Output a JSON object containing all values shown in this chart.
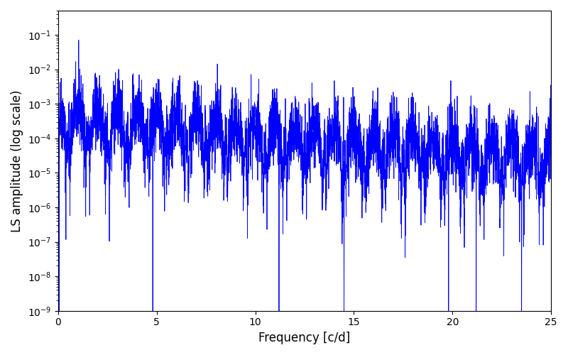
{
  "xlabel": "Frequency [c/d]",
  "ylabel": "LS amplitude (log scale)",
  "xlim": [
    0,
    25
  ],
  "ylim": [
    1e-09,
    0.5
  ],
  "line_color": "#0000ff",
  "line_width": 0.6,
  "figsize": [
    8.0,
    5.0
  ],
  "dpi": 100,
  "background_color": "#ffffff",
  "freq_min": 0.0,
  "freq_max": 25.0,
  "n_points": 5000,
  "seed": 42
}
